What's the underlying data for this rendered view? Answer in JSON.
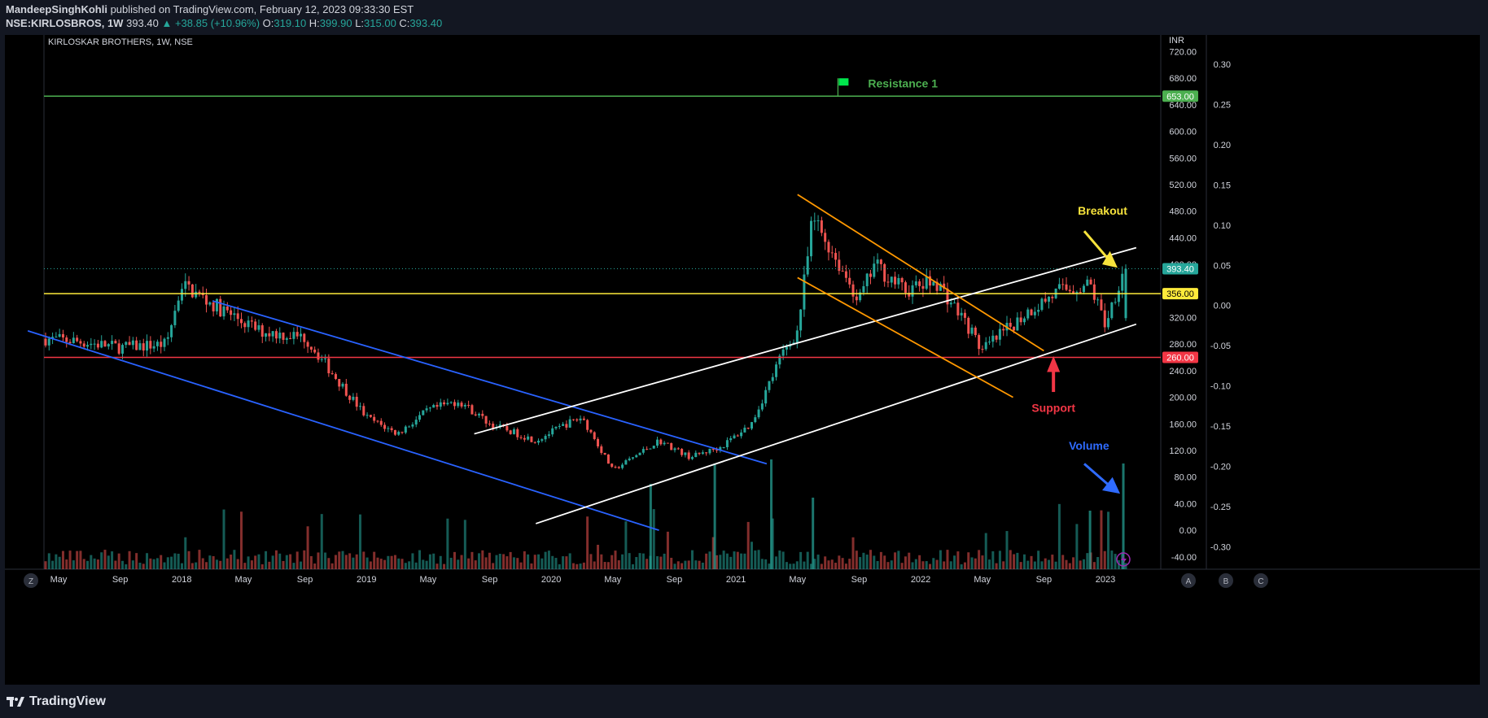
{
  "header": {
    "author": "MandeepSinghKohli",
    "published_text": "published on TradingView.com, February 12, 2023 09:33:30 EST",
    "symbol": "NSE:KIRLOSBROS, 1W",
    "last": "393.40",
    "change": "▲ +38.85 (+10.96%)",
    "o_label": "O:",
    "o_val": "319.10",
    "h_label": "H:",
    "h_val": "399.90",
    "l_label": "L:",
    "l_val": "315.00",
    "c_label": "C:",
    "c_val": "393.40"
  },
  "chart_title": "KIRLOSKAR BROTHERS, 1W, NSE",
  "footer": {
    "brand": "TradingView"
  },
  "buttons": {
    "z": "Z",
    "a": "A",
    "b": "B",
    "c": "C"
  },
  "colors": {
    "up": "#26a69a",
    "down": "#ef5350",
    "background": "#000000",
    "panel": "#131722",
    "resistance": "#4caf50",
    "yellow": "#ffeb3b",
    "support": "#f23645",
    "blue_channel": "#2962ff",
    "orange_channel": "#ff9800",
    "white_channel": "#ffffff",
    "arrow_yellow": "#f7e33c",
    "arrow_blue": "#2f6bff"
  },
  "chart_data": {
    "type": "candlestick",
    "title": "KIRLOSKAR BROTHERS, 1W, NSE",
    "currency": "INR",
    "ylim": [
      -40,
      760
    ],
    "y_ticks": [
      "720.00",
      "680.00",
      "640.00",
      "600.00",
      "560.00",
      "520.00",
      "480.00",
      "440.00",
      "400.00",
      "360.00",
      "320.00",
      "280.00",
      "240.00",
      "200.00",
      "160.00",
      "120.00",
      "80.00",
      "40.00",
      "0.00",
      "-40.00"
    ],
    "y2_ticks": [
      "0.30",
      "0.25",
      "0.20",
      "0.15",
      "0.10",
      "0.05",
      "0.00",
      "-0.05",
      "-0.10",
      "-0.15",
      "-0.20",
      "-0.25",
      "-0.30"
    ],
    "x_ticks": [
      "May",
      "Sep",
      "2018",
      "May",
      "Sep",
      "2019",
      "May",
      "Sep",
      "2020",
      "May",
      "Sep",
      "2021",
      "May",
      "Sep",
      "2022",
      "May",
      "Sep",
      "2023"
    ],
    "x_tick_dates": [
      "2017-05",
      "2017-09",
      "2018-01",
      "2018-05",
      "2018-09",
      "2019-01",
      "2019-05",
      "2019-09",
      "2020-01",
      "2020-05",
      "2020-09",
      "2021-01",
      "2021-05",
      "2021-09",
      "2022-01",
      "2022-05",
      "2022-09",
      "2023-01"
    ],
    "price_anchors": [
      [
        "2017-03",
        290
      ],
      [
        "2017-06",
        285
      ],
      [
        "2017-09",
        275
      ],
      [
        "2017-12",
        280
      ],
      [
        "2018-01",
        370
      ],
      [
        "2018-03",
        340
      ],
      [
        "2018-06",
        300
      ],
      [
        "2018-09",
        290
      ],
      [
        "2018-11",
        230
      ],
      [
        "2019-01",
        170
      ],
      [
        "2019-03",
        145
      ],
      [
        "2019-05",
        180
      ],
      [
        "2019-07",
        195
      ],
      [
        "2019-09",
        160
      ],
      [
        "2019-12",
        135
      ],
      [
        "2020-02",
        160
      ],
      [
        "2020-03",
        170
      ],
      [
        "2020-05",
        90
      ],
      [
        "2020-06",
        105
      ],
      [
        "2020-08",
        135
      ],
      [
        "2020-10",
        110
      ],
      [
        "2020-12",
        125
      ],
      [
        "2021-02",
        160
      ],
      [
        "2021-04",
        265
      ],
      [
        "2021-05",
        300
      ],
      [
        "2021-06",
        470
      ],
      [
        "2021-07",
        430
      ],
      [
        "2021-09",
        345
      ],
      [
        "2021-10",
        400
      ],
      [
        "2021-12",
        360
      ],
      [
        "2022-02",
        375
      ],
      [
        "2022-04",
        310
      ],
      [
        "2022-05",
        270
      ],
      [
        "2022-06",
        290
      ],
      [
        "2022-08",
        330
      ],
      [
        "2022-10",
        360
      ],
      [
        "2022-12",
        370
      ],
      [
        "2023-01",
        310
      ],
      [
        "2023-02-06",
        393.4
      ]
    ],
    "last_price": 393.4,
    "price_labels": [
      {
        "value": 653,
        "text": "653.00",
        "color": "#4caf50"
      },
      {
        "value": 393.4,
        "text": "393.40",
        "color": "#26a69a"
      },
      {
        "value": 356,
        "text": "356.00",
        "color": "#ffeb3b"
      },
      {
        "value": 260,
        "text": "260.00",
        "color": "#f23645"
      }
    ],
    "horizontal_lines": [
      {
        "name": "Resistance 1",
        "value": 653,
        "color": "#4caf50"
      },
      {
        "value": 356,
        "color": "#ffeb3b"
      },
      {
        "value": 260,
        "color": "#f23645"
      }
    ],
    "trend_lines": [
      {
        "color": "#2962ff",
        "from": [
          "2018-03",
          345
        ],
        "to": [
          "2021-03",
          100
        ]
      },
      {
        "color": "#2962ff",
        "from": [
          "2017-03",
          300
        ],
        "to": [
          "2020-08",
          0
        ]
      },
      {
        "color": "#ffffff",
        "from": [
          "2019-08",
          145
        ],
        "to": [
          "2023-03",
          425
        ]
      },
      {
        "color": "#ffffff",
        "from": [
          "2019-12",
          10
        ],
        "to": [
          "2023-03",
          310
        ]
      },
      {
        "color": "#ff9800",
        "from": [
          "2021-05",
          505
        ],
        "to": [
          "2022-09",
          270
        ]
      },
      {
        "color": "#ff9800",
        "from": [
          "2021-05",
          380
        ],
        "to": [
          "2022-07",
          200
        ]
      }
    ],
    "annotations": [
      {
        "text": "Resistance 1",
        "color": "#4caf50"
      },
      {
        "text": "Breakout",
        "color": "#f7e33c"
      },
      {
        "text": "Support",
        "color": "#f23645"
      },
      {
        "text": "Volume",
        "color": "#2f6bff"
      }
    ],
    "legend": "none",
    "grid": false
  }
}
